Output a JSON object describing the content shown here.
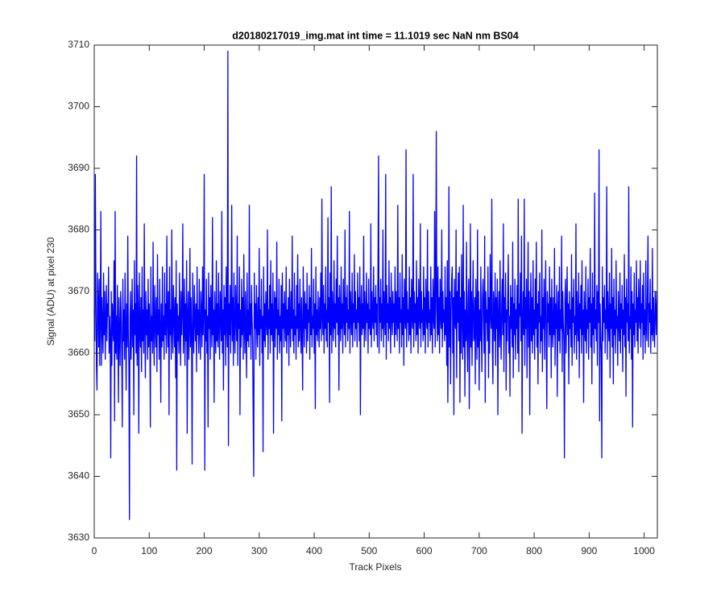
{
  "chart_data": {
    "type": "line",
    "title": "d20180217019_img.mat int time = 11.1019 sec  NaN nm BS04",
    "x_label": "Track Pixels",
    "y_label": "Signal (ADU) at pixel 230",
    "color": "#0000ff",
    "xlim": [
      0,
      1024
    ],
    "xticks": [
      0,
      100,
      200,
      300,
      400,
      500,
      600,
      700,
      800,
      900,
      1000
    ],
    "ylim": [
      3630,
      3710
    ],
    "yticks": [
      3630,
      3640,
      3650,
      3660,
      3670,
      3680,
      3690,
      3700,
      3710
    ],
    "grid": false,
    "values": [
      3667,
      3662,
      3689,
      3670,
      3658,
      3654,
      3673,
      3668,
      3661,
      3672,
      3658,
      3666,
      3683,
      3658,
      3669,
      3664,
      3660,
      3673,
      3663,
      3670,
      3659,
      3665,
      3671,
      3662,
      3668,
      3666,
      3674,
      3660,
      3666,
      3663,
      3643,
      3670,
      3658,
      3668,
      3664,
      3662,
      3675,
      3649,
      3683,
      3660,
      3666,
      3659,
      3671,
      3664,
      3652,
      3669,
      3663,
      3658,
      3670,
      3666,
      3660,
      3648,
      3672,
      3662,
      3667,
      3659,
      3673,
      3664,
      3654,
      3668,
      3661,
      3679,
      3663,
      3658,
      3633,
      3666,
      3670,
      3659,
      3664,
      3672,
      3661,
      3667,
      3650,
      3675,
      3663,
      3668,
      3660,
      3692,
      3658,
      3671,
      3666,
      3647,
      3673,
      3664,
      3661,
      3669,
      3657,
      3674,
      3662,
      3667,
      3660,
      3681,
      3664,
      3656,
      3670,
      3663,
      3667,
      3659,
      3672,
      3661,
      3668,
      3664,
      3648,
      3674,
      3662,
      3666,
      3660,
      3678,
      3663,
      3658,
      3671,
      3665,
      3661,
      3669,
      3657,
      3676,
      3663,
      3667,
      3659,
      3672,
      3664,
      3652,
      3668,
      3661,
      3674,
      3662,
      3666,
      3659,
      3673,
      3663,
      3668,
      3660,
      3679,
      3665,
      3661,
      3670,
      3650,
      3674,
      3663,
      3667,
      3659,
      3680,
      3664,
      3660,
      3671,
      3666,
      3661,
      3669,
      3656,
      3675,
      3641,
      3668,
      3662,
      3666,
      3660,
      3673,
      3664,
      3658,
      3670,
      3663,
      3667,
      3681,
      3660,
      3664,
      3672,
      3658,
      3668,
      3662,
      3675,
      3647,
      3666,
      3670,
      3659,
      3664,
      3677,
      3661,
      3669,
      3663,
      3642,
      3673,
      3665,
      3660,
      3671,
      3666,
      3662,
      3668,
      3657,
      3674,
      3663,
      3667,
      3660,
      3672,
      3664,
      3659,
      3670,
      3666,
      3661,
      3674,
      3663,
      3668,
      3689,
      3641,
      3667,
      3662,
      3672,
      3660,
      3666,
      3648,
      3673,
      3664,
      3669,
      3659,
      3671,
      3665,
      3661,
      3682,
      3663,
      3667,
      3652,
      3670,
      3664,
      3660,
      3675,
      3662,
      3668,
      3661,
      3673,
      3664,
      3659,
      3670,
      3666,
      3662,
      3683,
      3660,
      3667,
      3654,
      3671,
      3663,
      3669,
      3658,
      3674,
      3665,
      3661,
      3709,
      3645,
      3668,
      3663,
      3671,
      3660,
      3666,
      3684,
      3662,
      3669,
      3658,
      3673,
      3664,
      3660,
      3671,
      3666,
      3662,
      3679,
      3658,
      3668,
      3664,
      3674,
      3650,
      3667,
      3661,
      3672,
      3663,
      3669,
      3659,
      3676,
      3665,
      3660,
      3670,
      3664,
      3656,
      3673,
      3662,
      3667,
      3661,
      3684,
      3663,
      3668,
      3659,
      3671,
      3666,
      3662,
      3650,
      3640,
      3673,
      3664,
      3668,
      3659,
      3671,
      3665,
      3661,
      3669,
      3663,
      3677,
      3658,
      3667,
      3664,
      3672,
      3660,
      3666,
      3644,
      3674,
      3662,
      3668,
      3661,
      3670,
      3665,
      3663,
      3680,
      3659,
      3667,
      3664,
      3671,
      3660,
      3675,
      3663,
      3668,
      3662,
      3673,
      3647,
      3666,
      3670,
      3661,
      3669,
      3664,
      3678,
      3659,
      3667,
      3663,
      3672,
      3660,
      3666,
      3662,
      3671,
      3649,
      3673,
      3664,
      3668,
      3661,
      3670,
      3665,
      3662,
      3674,
      3660,
      3667,
      3663,
      3669,
      3658,
      3672,
      3665,
      3661,
      3670,
      3664,
      3679,
      3662,
      3667,
      3660,
      3673,
      3663,
      3666,
      3659,
      3671,
      3664,
      3676,
      3661,
      3668,
      3662,
      3672,
      3665,
      3660,
      3669,
      3663,
      3654,
      3674,
      3666,
      3661,
      3670,
      3664,
      3668,
      3660,
      3673,
      3662,
      3667,
      3665,
      3671,
      3659,
      3669,
      3663,
      3677,
      3661,
      3666,
      3664,
      3672,
      3660,
      3668,
      3651,
      3674,
      3663,
      3667,
      3662,
      3670,
      3665,
      3661,
      3669,
      3664,
      3673,
      3662,
      3685,
      3666,
      3663,
      3671,
      3660,
      3668,
      3664,
      3674,
      3662,
      3667,
      3661,
      3682,
      3665,
      3669,
      3652,
      3673,
      3663,
      3687,
      3660,
      3670,
      3666,
      3662,
      3675,
      3664,
      3668,
      3661,
      3672,
      3665,
      3679,
      3663,
      3669,
      3654,
      3671,
      3666,
      3662,
      3674,
      3664,
      3668,
      3660,
      3672,
      3666,
      3663,
      3680,
      3661,
      3669,
      3665,
      3671,
      3662,
      3667,
      3664,
      3683,
      3660,
      3670,
      3666,
      3663,
      3673,
      3661,
      3668,
      3665,
      3676,
      3662,
      3670,
      3664,
      3667,
      3661,
      3673,
      3665,
      3669,
      3662,
      3674,
      3650,
      3667,
      3671,
      3663,
      3668,
      3664,
      3679,
      3661,
      3670,
      3666,
      3662,
      3673,
      3665,
      3668,
      3660,
      3672,
      3664,
      3667,
      3663,
      3681,
      3661,
      3670,
      3666,
      3664,
      3674,
      3662,
      3669,
      3665,
      3671,
      3663,
      3668,
      3661,
      3674,
      3692,
      3660,
      3669,
      3665,
      3672,
      3662,
      3668,
      3664,
      3680,
      3661,
      3670,
      3666,
      3663,
      3689,
      3659,
      3671,
      3665,
      3668,
      3662,
      3675,
      3664,
      3669,
      3660,
      3673,
      3666,
      3663,
      3670,
      3665,
      3668,
      3661,
      3674,
      3663,
      3670,
      3666,
      3662,
      3684,
      3664,
      3669,
      3660,
      3673,
      3665,
      3667,
      3661,
      3676,
      3663,
      3669,
      3658,
      3672,
      3666,
      3664,
      3693,
      3661,
      3670,
      3665,
      3667,
      3662,
      3674,
      3663,
      3669,
      3660,
      3672,
      3666,
      3664,
      3689,
      3661,
      3670,
      3665,
      3668,
      3662,
      3675,
      3663,
      3669,
      3660,
      3672,
      3666,
      3664,
      3681,
      3661,
      3670,
      3665,
      3667,
      3662,
      3674,
      3663,
      3669,
      3660,
      3672,
      3666,
      3664,
      3680,
      3661,
      3670,
      3665,
      3667,
      3662,
      3674,
      3663,
      3669,
      3660,
      3672,
      3666,
      3664,
      3683,
      3661,
      3670,
      3696,
      3667,
      3662,
      3674,
      3663,
      3669,
      3660,
      3672,
      3666,
      3664,
      3680,
      3661,
      3670,
      3665,
      3667,
      3662,
      3674,
      3663,
      3669,
      3658,
      3675,
      3652,
      3664,
      3687,
      3661,
      3670,
      3655,
      3667,
      3672,
      3674,
      3660,
      3669,
      3650,
      3672,
      3666,
      3664,
      3680,
      3656,
      3670,
      3665,
      3673,
      3662,
      3674,
      3652,
      3669,
      3660,
      3676,
      3666,
      3659,
      3684,
      3661,
      3670,
      3653,
      3667,
      3662,
      3678,
      3663,
      3657,
      3669,
      3672,
      3651,
      3664,
      3681,
      3661,
      3670,
      3658,
      3667,
      3675,
      3662,
      3663,
      3669,
      3655,
      3672,
      3666,
      3659,
      3680,
      3661,
      3670,
      3654,
      3667,
      3662,
      3674,
      3663,
      3657,
      3669,
      3672,
      3666,
      3660,
      3679,
      3652,
      3670,
      3665,
      3667,
      3662,
      3674,
      3656,
      3669,
      3660,
      3676,
      3666,
      3664,
      3685,
      3661,
      3655,
      3670,
      3667,
      3662,
      3673,
      3658,
      3669,
      3664,
      3672,
      3650,
      3666,
      3670,
      3661,
      3675,
      3664,
      3659,
      3668,
      3672,
      3663,
      3681,
      3657,
      3669,
      3665,
      3673,
      3654,
      3667,
      3662,
      3670,
      3676,
      3660,
      3666,
      3653,
      3671,
      3664,
      3669,
      3661,
      3678,
      3656,
      3668,
      3663,
      3672,
      3659,
      3667,
      3664,
      3671,
      3660,
      3685,
      3657,
      3668,
      3666,
      3673,
      3662,
      3679,
      3647,
      3665,
      3670,
      3663,
      3685,
      3658,
      3669,
      3664,
      3672,
      3656,
      3667,
      3678,
      3661,
      3670,
      3650,
      3666,
      3673,
      3662,
      3669,
      3660,
      3675,
      3663,
      3667,
      3659,
      3672,
      3664,
      3678,
      3661,
      3668,
      3655,
      3670,
      3665,
      3673,
      3660,
      3666,
      3662,
      3680,
      3657,
      3669,
      3664,
      3672,
      3659,
      3667,
      3675,
      3662,
      3651,
      3670,
      3665,
      3668,
      3661,
      3674,
      3663,
      3669,
      3656,
      3672,
      3665,
      3661,
      3669,
      3663,
      3677,
      3658,
      3668,
      3664,
      3671,
      3653,
      3666,
      3670,
      3662,
      3674,
      3660,
      3667,
      3664,
      3679,
      3657,
      3670,
      3665,
      3662,
      3643,
      3669,
      3672,
      3660,
      3666,
      3674,
      3663,
      3668,
      3655,
      3670,
      3664,
      3667,
      3661,
      3676,
      3658,
      3669,
      3665,
      3672,
      3660,
      3666,
      3663,
      3681,
      3659,
      3670,
      3665,
      3662,
      3673,
      3656,
      3668,
      3664,
      3671,
      3660,
      3675,
      3663,
      3667,
      3652,
      3670,
      3665,
      3662,
      3674,
      3660,
      3667,
      3664,
      3672,
      3659,
      3669,
      3665,
      3677,
      3661,
      3668,
      3655,
      3673,
      3663,
      3669,
      3660,
      3686,
      3664,
      3667,
      3662,
      3671,
      3658,
      3670,
      3665,
      3693,
      3649,
      3668,
      3663,
      3660,
      3643,
      3674,
      3662,
      3669,
      3665,
      3671,
      3660,
      3667,
      3664,
      3687,
      3659,
      3670,
      3665,
      3662,
      3673,
      3656,
      3668,
      3664,
      3677,
      3661,
      3669,
      3655,
      3672,
      3663,
      3667,
      3660,
      3675,
      3664,
      3666,
      3658,
      3670,
      3665,
      3662,
      3673,
      3660,
      3668,
      3664,
      3671,
      3657,
      3667,
      3663,
      3676,
      3661,
      3669,
      3653,
      3672,
      3665,
      3668,
      3662,
      3687,
      3660,
      3666,
      3664,
      3674,
      3659,
      3670,
      3648,
      3668,
      3663,
      3673,
      3661,
      3667,
      3665,
      3675,
      3662,
      3669,
      3660,
      3672,
      3666,
      3664,
      3675,
      3661,
      3668,
      3665,
      3671,
      3659,
      3673,
      3663,
      3667,
      3660,
      3675,
      3664,
      3662,
      3670,
      3679,
      3661,
      3668,
      3665,
      3672,
      3660,
      3667,
      3663,
      3677,
      3662,
      3669,
      3664,
      3661,
      3670,
      3667,
      3663,
      3670
    ]
  }
}
